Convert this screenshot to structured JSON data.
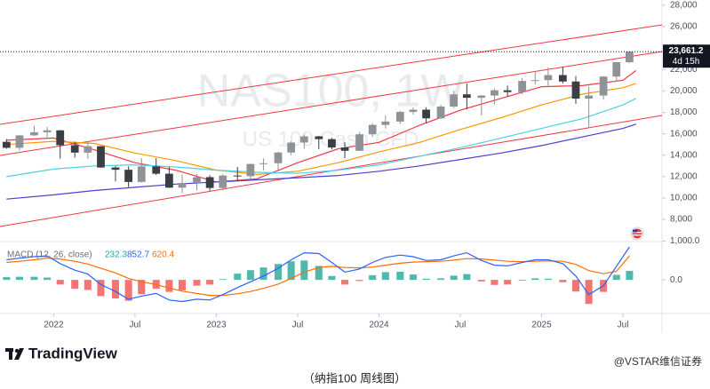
{
  "chart_data": [
    {
      "type": "candlestick",
      "symbol": "NAS100, 1W",
      "description": "US 100 Cash CFD",
      "x": [
        2021.71,
        2021.79,
        2021.88,
        2021.96,
        2022.04,
        2022.13,
        2022.21,
        2022.29,
        2022.38,
        2022.46,
        2022.54,
        2022.63,
        2022.71,
        2022.79,
        2022.88,
        2022.96,
        2023.04,
        2023.13,
        2023.21,
        2023.29,
        2023.38,
        2023.46,
        2023.54,
        2023.63,
        2023.71,
        2023.79,
        2023.88,
        2023.96,
        2024.04,
        2024.13,
        2024.21,
        2024.29,
        2024.38,
        2024.46,
        2024.54,
        2024.63,
        2024.71,
        2024.79,
        2024.88,
        2024.96,
        2025.04,
        2025.13,
        2025.21,
        2025.29,
        2025.38,
        2025.46,
        2025.54
      ],
      "open": [
        15250,
        14690,
        15850,
        16140,
        16320,
        14930,
        14240,
        14840,
        12850,
        12640,
        11500,
        12950,
        12270,
        10970,
        11400,
        11950,
        10940,
        12100,
        12040,
        13180,
        13250,
        14250,
        15180,
        15760,
        15500,
        14720,
        14410,
        15950,
        16830,
        17140,
        18040,
        18250,
        17440,
        18540,
        19680,
        19360,
        19570,
        20060,
        19890,
        20930,
        21010,
        21480,
        20880,
        19280,
        19570,
        21340,
        22680
      ],
      "high": [
        15500,
        15900,
        16760,
        16660,
        16350,
        15260,
        15280,
        14860,
        13000,
        12950,
        13720,
        13720,
        12900,
        12200,
        12250,
        12140,
        12250,
        12900,
        13200,
        13700,
        14300,
        15300,
        15930,
        15800,
        15620,
        15210,
        16100,
        16970,
        17700,
        18140,
        18460,
        18470,
        18700,
        20020,
        20700,
        19600,
        20230,
        20500,
        21200,
        21850,
        22200,
        22250,
        21400,
        20400,
        21400,
        22700,
        23718
      ],
      "low": [
        14600,
        14420,
        15800,
        15570,
        13680,
        13770,
        13660,
        12830,
        11550,
        11030,
        11450,
        12150,
        10930,
        10440,
        10700,
        10670,
        10700,
        11600,
        11700,
        12600,
        12500,
        14000,
        14600,
        14570,
        14550,
        13730,
        14400,
        15700,
        16500,
        16900,
        17800,
        16970,
        17420,
        18400,
        18300,
        17700,
        18750,
        19500,
        19700,
        20600,
        20500,
        20700,
        18800,
        16540,
        19200,
        20900,
        22600
      ],
      "close": [
        14690,
        15850,
        16140,
        16320,
        14930,
        14240,
        14840,
        12850,
        12640,
        11500,
        12950,
        12270,
        10970,
        11400,
        11950,
        10940,
        12100,
        12040,
        13180,
        13250,
        14250,
        15180,
        15760,
        15500,
        14720,
        14410,
        15950,
        16830,
        17140,
        18040,
        18250,
        17440,
        18540,
        19680,
        19360,
        19570,
        20060,
        19890,
        20930,
        21010,
        21480,
        20880,
        19280,
        19570,
        21340,
        22680,
        23661.2
      ],
      "up_color": "#8f9297",
      "down_color": "#3b3e45",
      "xlim": [
        2021.67,
        2025.74
      ],
      "xticks": [
        {
          "value": 2022,
          "label": "2022"
        },
        {
          "value": 2022.5,
          "label": "Jul"
        },
        {
          "value": 2023,
          "label": "2023"
        },
        {
          "value": 2023.5,
          "label": "Jul"
        },
        {
          "value": 2024,
          "label": "2024"
        },
        {
          "value": 2024.5,
          "label": "Jul"
        },
        {
          "value": 2025,
          "label": "2025"
        },
        {
          "value": 2025.5,
          "label": "Jul"
        }
      ],
      "ylim": [
        6100,
        28490
      ],
      "yticks": [
        {
          "value": 8000,
          "label": "8,000"
        },
        {
          "value": 10000,
          "label": "10,000"
        },
        {
          "value": 12000,
          "label": "12,000"
        },
        {
          "value": 14000,
          "label": "14,000"
        },
        {
          "value": 16000,
          "label": "16,000"
        },
        {
          "value": 18000,
          "label": "18,000"
        },
        {
          "value": 20000,
          "label": "20,000"
        },
        {
          "value": 22000,
          "label": "22,000"
        },
        {
          "value": 24000,
          "label": "24,000"
        },
        {
          "value": 26000,
          "label": "26,000"
        },
        {
          "value": 28000,
          "label": "28,000"
        }
      ],
      "grid": false,
      "last_price": {
        "value": 23661.2,
        "label": "23,661.2"
      },
      "countdown": "4d 15h",
      "moving_averages": [
        {
          "color": "#f23645",
          "x": [
            2021.71,
            2022.0,
            2022.25,
            2022.5,
            2022.75,
            2023.0,
            2023.25,
            2023.5,
            2023.75,
            2024.0,
            2024.25,
            2024.5,
            2024.75,
            2025.0,
            2025.25,
            2025.5,
            2025.58
          ],
          "values": [
            15400,
            15600,
            14500,
            13300,
            12600,
            11500,
            11800,
            13300,
            14600,
            15200,
            16800,
            18200,
            19300,
            20400,
            20500,
            21000,
            21900
          ]
        },
        {
          "color": "#ff9800",
          "x": [
            2021.71,
            2022.0,
            2022.25,
            2022.5,
            2022.75,
            2023.0,
            2023.25,
            2023.5,
            2023.75,
            2024.0,
            2024.25,
            2024.5,
            2024.75,
            2025.0,
            2025.25,
            2025.5,
            2025.58
          ],
          "values": [
            15000,
            15300,
            15100,
            14200,
            13500,
            12600,
            12200,
            12500,
            13300,
            14300,
            15200,
            16400,
            17500,
            18700,
            19700,
            20300,
            20700
          ]
        },
        {
          "color": "#4dd0e1",
          "x": [
            2021.71,
            2022.0,
            2022.25,
            2022.5,
            2022.75,
            2023.0,
            2023.25,
            2023.5,
            2023.75,
            2024.0,
            2024.25,
            2024.5,
            2024.75,
            2025.0,
            2025.25,
            2025.5,
            2025.58
          ],
          "values": [
            12000,
            12700,
            13000,
            13100,
            12900,
            12600,
            12400,
            12300,
            12600,
            13100,
            13900,
            14700,
            15600,
            16500,
            17400,
            18700,
            19300
          ]
        },
        {
          "color": "#4a3fd0",
          "x": [
            2021.71,
            2022.0,
            2022.25,
            2022.5,
            2022.75,
            2023.0,
            2023.25,
            2023.5,
            2023.75,
            2024.0,
            2024.25,
            2024.5,
            2024.75,
            2025.0,
            2025.25,
            2025.5,
            2025.58
          ],
          "values": [
            9900,
            10300,
            10700,
            11000,
            11300,
            11500,
            11700,
            11900,
            12100,
            12500,
            13000,
            13600,
            14200,
            14900,
            15700,
            16500,
            16900
          ]
        }
      ],
      "channels": [
        {
          "color": "#f23645",
          "x": [
            2021.67,
            2025.74
          ],
          "values": [
            16880,
            26166
          ]
        },
        {
          "color": "#f23645",
          "x": [
            2021.67,
            2025.74
          ],
          "values": [
            13977,
            23678
          ]
        },
        {
          "color": "#f23645",
          "x": [
            2021.67,
            2025.74
          ],
          "values": [
            7343,
            17708
          ]
        }
      ]
    },
    {
      "type": "macd",
      "title": "MACD (12, 26, close)",
      "x": [
        2021.71,
        2021.79,
        2021.88,
        2021.96,
        2022.04,
        2022.13,
        2022.21,
        2022.29,
        2022.38,
        2022.46,
        2022.54,
        2022.63,
        2022.71,
        2022.79,
        2022.88,
        2022.96,
        2023.04,
        2023.13,
        2023.21,
        2023.29,
        2023.38,
        2023.46,
        2023.54,
        2023.63,
        2023.71,
        2023.79,
        2023.88,
        2023.96,
        2024.04,
        2024.13,
        2024.21,
        2024.29,
        2024.38,
        2024.46,
        2024.54,
        2024.63,
        2024.71,
        2024.79,
        2024.88,
        2024.96,
        2025.04,
        2025.13,
        2025.21,
        2025.29,
        2025.38,
        2025.46,
        2025.54
      ],
      "xlim": [
        2021.67,
        2025.74
      ],
      "ylim": [
        -800,
        1150
      ],
      "yticks": [
        {
          "value": 0,
          "label": "0.0"
        },
        {
          "value": 1000,
          "label": "1,000.0"
        }
      ],
      "histogram": {
        "up_color": "#26a69a",
        "down_color": "#ef5350",
        "values": [
          70,
          80,
          80,
          60,
          -120,
          -230,
          -260,
          -420,
          -480,
          -540,
          -370,
          -230,
          -310,
          -270,
          -150,
          -120,
          20,
          160,
          250,
          320,
          410,
          480,
          500,
          360,
          100,
          -120,
          -30,
          120,
          200,
          210,
          140,
          30,
          40,
          110,
          150,
          -40,
          -130,
          -120,
          -20,
          40,
          30,
          -60,
          -300,
          -620,
          -310,
          130,
          232.3
        ]
      },
      "macd": {
        "color": "#2962ff",
        "values": [
          520,
          560,
          600,
          620,
          420,
          250,
          150,
          -120,
          -300,
          -500,
          -420,
          -350,
          -520,
          -560,
          -500,
          -520,
          -380,
          -200,
          -50,
          100,
          300,
          520,
          700,
          680,
          450,
          200,
          280,
          450,
          580,
          640,
          600,
          500,
          520,
          620,
          700,
          500,
          380,
          360,
          450,
          520,
          520,
          420,
          100,
          -380,
          -150,
          350,
          852.7
        ]
      },
      "signal": {
        "color": "#ff6d00",
        "values": [
          450,
          480,
          520,
          560,
          540,
          480,
          410,
          300,
          180,
          40,
          -50,
          -120,
          -210,
          -290,
          -350,
          -400,
          -400,
          -360,
          -300,
          -220,
          -110,
          40,
          200,
          320,
          350,
          320,
          310,
          330,
          380,
          430,
          460,
          470,
          480,
          510,
          550,
          540,
          510,
          480,
          470,
          480,
          490,
          480,
          400,
          240,
          160,
          220,
          620.4
        ]
      }
    }
  ],
  "branding": {
    "logo": "TradingView",
    "credit": "@VSTAR维信证券"
  },
  "caption": "（纳指100 周线图）"
}
